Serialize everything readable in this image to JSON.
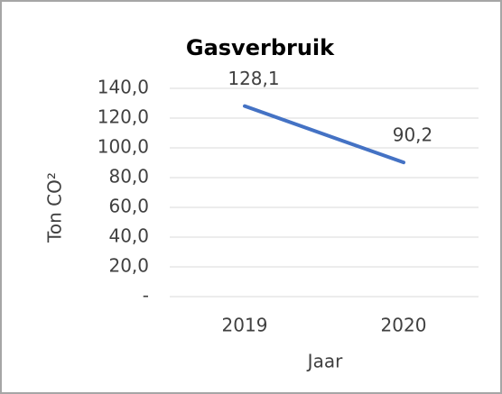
{
  "chart_data": {
    "type": "line",
    "title": "Gasverbruik",
    "x_label": "Jaar",
    "y_label": "Ton CO²",
    "categories": [
      "2019",
      "2020"
    ],
    "series": [
      {
        "name": "Gasverbruik",
        "color": "#4472c4",
        "values": [
          128.1,
          90.2
        ],
        "value_labels": [
          "128,1",
          "90,2"
        ]
      }
    ],
    "ylim": [
      0,
      140
    ],
    "yticks": [
      {
        "value": 0,
        "label": "-"
      },
      {
        "value": 20,
        "label": "20,0"
      },
      {
        "value": 40,
        "label": "40,0"
      },
      {
        "value": 60,
        "label": "60,0"
      },
      {
        "value": 80,
        "label": "80,0"
      },
      {
        "value": 100,
        "label": "100,0"
      },
      {
        "value": 120,
        "label": "120,0"
      },
      {
        "value": 140,
        "label": "140,0"
      }
    ],
    "grid": true
  }
}
